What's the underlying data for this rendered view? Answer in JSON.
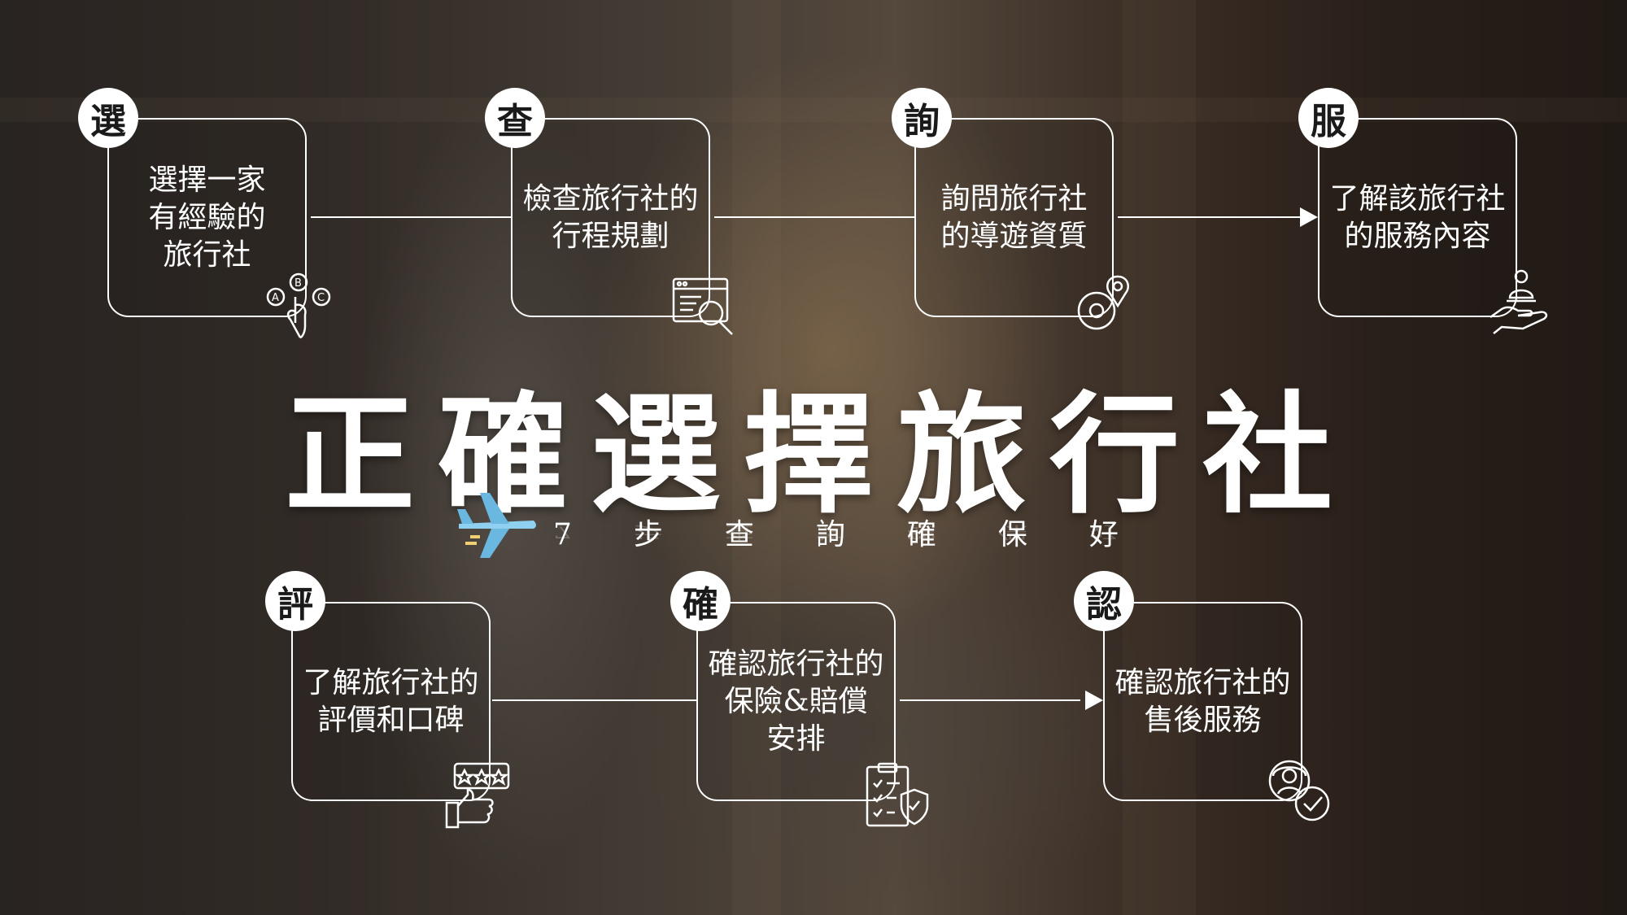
{
  "title": "正確選擇旅行社",
  "subtitle": "7步查詢確保好",
  "steps": [
    {
      "badge": "選",
      "text": "選擇一家\n有經驗的\n旅行社",
      "icon": "abc-choice-hand-icon"
    },
    {
      "badge": "查",
      "text": "檢查旅行社的\n行程規劃",
      "icon": "browser-magnifier-icon"
    },
    {
      "badge": "詢",
      "text": "詢問旅行社\n的導遊資質",
      "icon": "guide-location-icon"
    },
    {
      "badge": "服",
      "text": "了解該旅行社\n的服務內容",
      "icon": "service-hand-icon"
    },
    {
      "badge": "評",
      "text": "了解旅行社的\n評價和口碑",
      "icon": "thumbs-up-stars-icon"
    },
    {
      "badge": "確",
      "text": "確認旅行社的\n保險&賠償\n安排",
      "icon": "clipboard-shield-icon"
    },
    {
      "badge": "認",
      "text": "確認旅行社的\n售後服務",
      "icon": "support-check-icon"
    }
  ],
  "colors": {
    "line": "#ffffff",
    "badge_bg": "#ffffff",
    "badge_text": "#1a1a1a"
  }
}
